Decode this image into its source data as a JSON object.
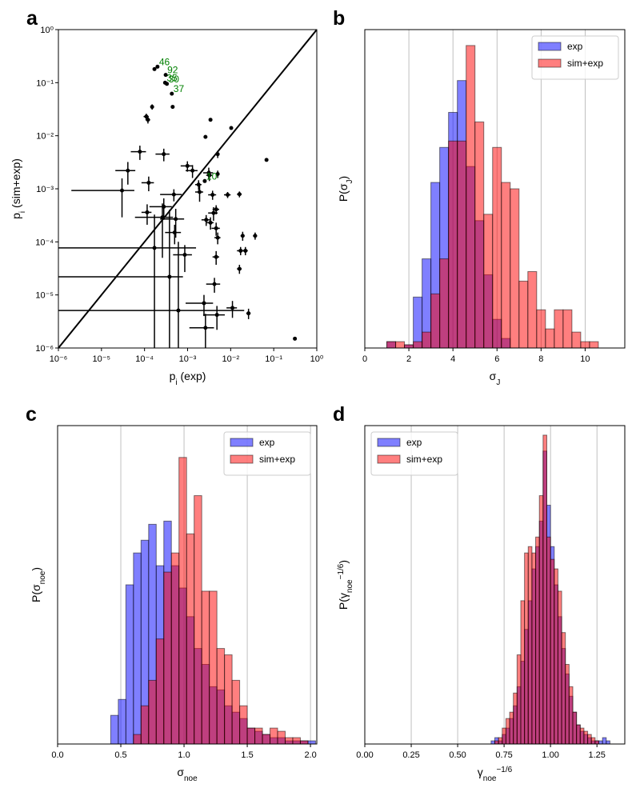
{
  "chart_data": [
    {
      "type": "scatter",
      "panel_label": "a",
      "log_x": true,
      "log_y": true,
      "diagonal": true,
      "xlabel": [
        {
          "text": "p"
        },
        {
          "text": "i",
          "shift": "sub"
        },
        {
          "text": " (exp)"
        }
      ],
      "ylabel": [
        {
          "text": "p"
        },
        {
          "text": "i",
          "shift": "sub"
        },
        {
          "text": " (sim+exp)"
        }
      ],
      "xlim": [
        1e-06,
        1
      ],
      "ylim": [
        1e-06,
        1
      ],
      "xticks": [
        {
          "value": 1e-06,
          "label": "10⁻⁶"
        },
        {
          "value": 1e-05,
          "label": "10⁻⁵"
        },
        {
          "value": 0.0001,
          "label": "10⁻⁴"
        },
        {
          "value": 0.001,
          "label": "10⁻³"
        },
        {
          "value": 0.01,
          "label": "10⁻²"
        },
        {
          "value": 0.1,
          "label": "10⁻¹"
        },
        {
          "value": 1,
          "label": "10⁰"
        }
      ],
      "yticks": [
        {
          "value": 1e-06,
          "label": "10⁻⁶"
        },
        {
          "value": 1e-05,
          "label": "10⁻⁵"
        },
        {
          "value": 0.0001,
          "label": "10⁻⁴"
        },
        {
          "value": 0.001,
          "label": "10⁻³"
        },
        {
          "value": 0.01,
          "label": "10⁻²"
        },
        {
          "value": 0.1,
          "label": "10⁻¹"
        },
        {
          "value": 1,
          "label": "10⁰"
        }
      ],
      "color": "black",
      "label_color": "green",
      "x": [
        0.0002,
        0.00031,
        0.0003,
        0.00033,
        0.00043,
        0.0025,
        0.00017,
        0.00015,
        0.00011,
        0.00012,
        0.00045,
        0.0034,
        0.0103,
        0.0026,
        0.068,
        0.31,
        7.8e-05,
        0.00028,
        0.005,
        4.1e-05,
        0.00099,
        0.0013,
        0.0031,
        0.005,
        0.0032,
        3e-05,
        0.000125,
        0.00048,
        0.0018,
        0.0019,
        0.0038,
        0.0085,
        0.016,
        0.0046,
        0.004,
        0.00028,
        0.000115,
        0.00026,
        0.00053,
        0.0027,
        0.0034,
        0.0005,
        0.0046,
        0.005,
        0.019,
        0.037,
        0.00017,
        0.00086,
        0.0046,
        0.017,
        0.022,
        0.00038,
        0.016,
        0.0042,
        0.0024,
        0.00061,
        0.011,
        0.0048,
        0.026,
        0.0026
      ],
      "y": [
        0.2,
        0.14,
        0.1,
        0.095,
        0.062,
        0.0014,
        0.18,
        0.035,
        0.023,
        0.02,
        0.035,
        0.02,
        0.014,
        0.0095,
        0.0035,
        1.5e-06,
        0.005,
        0.0045,
        0.0045,
        0.0022,
        0.0027,
        0.0022,
        0.002,
        0.0019,
        0.0018,
        0.00093,
        0.0013,
        0.00078,
        0.0012,
        0.00087,
        0.00077,
        0.00077,
        0.00079,
        0.00041,
        0.00035,
        0.00046,
        0.00036,
        0.00029,
        0.00027,
        0.00026,
        0.00023,
        0.00015,
        0.00018,
        0.00012,
        0.00013,
        0.00013,
        7.7e-05,
        5.7e-05,
        5.2e-05,
        6.8e-05,
        6.8e-05,
        2.2e-05,
        3.1e-05,
        1.6e-05,
        7e-06,
        5.1e-06,
        5.7e-06,
        4.2e-06,
        4.5e-06,
        2.4e-06
      ],
      "xerr": [
        0,
        0,
        0,
        0,
        0,
        0,
        0,
        0,
        1.5e-05,
        1.5e-05,
        0,
        0,
        0,
        0,
        0,
        0,
        3e-05,
        0.0001,
        0,
        2e-05,
        0.0003,
        0.0004,
        0.0008,
        0,
        0.0005,
        2.8e-05,
        4e-05,
        0.00025,
        0.0003,
        0.0004,
        0.0008,
        0.0015,
        0.002,
        0.0008,
        0.001,
        0.00015,
        3e-05,
        0.0002,
        0.0003,
        0.0006,
        0.0006,
        0.0002,
        0.001,
        0.0008,
        0.002,
        0.004,
        0.0014,
        0.0004,
        0.0008,
        0.003,
        0.003,
        0.0004,
        0.002,
        0.0015,
        0.0015,
        0.02,
        0.003,
        0.0025,
        0.003,
        0.0015
      ],
      "yerr": [
        0,
        0,
        0,
        0,
        0,
        0,
        0,
        0.004,
        0.003,
        0.003,
        0,
        0,
        0,
        0,
        0,
        0,
        0.0015,
        0.0012,
        0.0007,
        0.001,
        0.0006,
        0.0006,
        0.0005,
        0.0003,
        0.0004,
        0.00064,
        0.0004,
        0.0002,
        0.00025,
        0.0003,
        0.00015,
        0.0001,
        0.0001,
        8e-05,
        0.0001,
        0.0002,
        0.00015,
        0.00024,
        0.00015,
        6e-05,
        6e-05,
        6e-05,
        5e-05,
        3e-05,
        2.5e-05,
        2e-05,
        0.00025,
        3e-05,
        1.5e-05,
        1.2e-05,
        1.2e-05,
        0.00038,
        6e-06,
        5e-06,
        3e-06,
        9.5e-05,
        2e-06,
        2e-06,
        1e-06,
        2e-06
      ],
      "point_labels": [
        "46",
        "92",
        "35",
        "30",
        "37",
        "10",
        null,
        null,
        null,
        null,
        null,
        null,
        null,
        null,
        null,
        null,
        null,
        null,
        null,
        null,
        null,
        null,
        null,
        null,
        null,
        null,
        null,
        null,
        null,
        null,
        null,
        null,
        null,
        null,
        null,
        null,
        null,
        null,
        null,
        null,
        null,
        null,
        null,
        null,
        null,
        null,
        null,
        null,
        null,
        null,
        null,
        null,
        null,
        null,
        null,
        null,
        null,
        null,
        null,
        null
      ]
    },
    {
      "type": "histogram",
      "panel_label": "b",
      "grid": true,
      "legend": "upper right",
      "alpha": 0.5,
      "edgecolor": "black",
      "xlabel": [
        {
          "text": "σ"
        },
        {
          "text": "J",
          "shift": "sub"
        }
      ],
      "ylabel": [
        {
          "text": "P(σ"
        },
        {
          "text": "J",
          "shift": "sub"
        },
        {
          "text": ")"
        }
      ],
      "xlim": [
        0,
        11.8
      ],
      "ylim": [
        0,
        1
      ],
      "xticks": [
        0,
        2,
        4,
        6,
        8,
        10
      ],
      "series": [
        {
          "name": "exp",
          "color": "blue",
          "bins": [
            1.0,
            1.4,
            1.8,
            2.2,
            2.6,
            3.0,
            3.4,
            3.8,
            4.2,
            4.6,
            5.0,
            5.4,
            5.8,
            6.2,
            6.6
          ],
          "values": [
            0.02,
            0,
            0.01,
            0.16,
            0.28,
            0.52,
            0.63,
            0.74,
            0.84,
            0.57,
            0.4,
            0.23,
            0.09,
            0.03
          ]
        },
        {
          "name": "sim+exp",
          "color": "red",
          "bins": [
            1.0,
            1.4,
            1.8,
            2.2,
            2.6,
            3.0,
            3.4,
            3.8,
            4.2,
            4.6,
            5.0,
            5.4,
            5.8,
            6.2,
            6.6,
            7.0,
            7.4,
            7.8,
            8.2,
            8.6,
            9.0,
            9.4,
            9.8,
            10.2,
            10.6
          ],
          "values": [
            0.02,
            0.02,
            0.01,
            0.02,
            0.05,
            0.17,
            0.28,
            0.65,
            0.65,
            0.95,
            0.71,
            0.42,
            0.63,
            0.52,
            0.5,
            0.21,
            0.24,
            0.12,
            0.06,
            0.12,
            0.12,
            0.05,
            0.02,
            0.02
          ]
        }
      ]
    },
    {
      "type": "histogram",
      "panel_label": "c",
      "grid": true,
      "legend": "upper right",
      "alpha": 0.5,
      "edgecolor": "black",
      "xlabel": [
        {
          "text": "σ"
        },
        {
          "text": "noe",
          "shift": "sub"
        }
      ],
      "ylabel": [
        {
          "text": "P(σ"
        },
        {
          "text": "noe",
          "shift": "sub"
        },
        {
          "text": ")"
        }
      ],
      "xlim": [
        0,
        2.05
      ],
      "ylim": [
        0,
        1
      ],
      "xticks": [
        {
          "value": 0,
          "label": "0.0"
        },
        {
          "value": 0.5,
          "label": "0.5"
        },
        {
          "value": 1,
          "label": "1.0"
        },
        {
          "value": 1.5,
          "label": "1.5"
        },
        {
          "value": 2,
          "label": "2.0"
        }
      ],
      "series": [
        {
          "name": "exp",
          "color": "blue",
          "bins": [
            0.42,
            0.48,
            0.54,
            0.6,
            0.66,
            0.72,
            0.78,
            0.84,
            0.9,
            0.96,
            1.02,
            1.08,
            1.14,
            1.2,
            1.26,
            1.32,
            1.38,
            1.44,
            1.5,
            1.56,
            1.62,
            1.68,
            1.74,
            1.8,
            1.86,
            1.92,
            1.98,
            2.04
          ],
          "values": [
            0.09,
            0.14,
            0.5,
            0.6,
            0.64,
            0.69,
            0.56,
            0.7,
            0.56,
            0.49,
            0.4,
            0.3,
            0.25,
            0.18,
            0.17,
            0.12,
            0.1,
            0.08,
            0.05,
            0.04,
            0.03,
            0.02,
            0.02,
            0.01,
            0.01,
            0.01,
            0.01
          ]
        },
        {
          "name": "sim+exp",
          "color": "red",
          "bins": [
            0.6,
            0.66,
            0.72,
            0.78,
            0.84,
            0.9,
            0.96,
            1.02,
            1.08,
            1.14,
            1.2,
            1.26,
            1.32,
            1.38,
            1.44,
            1.5,
            1.56,
            1.62,
            1.68,
            1.74,
            1.8,
            1.86,
            1.92,
            1.98
          ],
          "values": [
            0.03,
            0.12,
            0.2,
            0.33,
            0.54,
            0.6,
            0.9,
            0.66,
            0.78,
            0.48,
            0.48,
            0.3,
            0.28,
            0.2,
            0.12,
            0.05,
            0.05,
            0.03,
            0.05,
            0.04,
            0.02,
            0.02,
            0.01
          ]
        }
      ]
    },
    {
      "type": "histogram",
      "panel_label": "d",
      "grid": true,
      "legend": "upper left",
      "alpha": 0.5,
      "edgecolor": "black",
      "xlabel": [
        {
          "text": "γ"
        },
        {
          "text": "noe",
          "shift": "sub"
        },
        {
          "text": "−1/6",
          "shift": "sup"
        }
      ],
      "ylabel": [
        {
          "text": "P(γ"
        },
        {
          "text": "noe",
          "shift": "sub"
        },
        {
          "text": "−1/6",
          "shift": "sup"
        },
        {
          "text": ")"
        }
      ],
      "xlim": [
        0,
        1.4
      ],
      "ylim": [
        0,
        1
      ],
      "xticks": [
        {
          "value": 0,
          "label": "0.00"
        },
        {
          "value": 0.25,
          "label": "0.25"
        },
        {
          "value": 0.5,
          "label": "0.50"
        },
        {
          "value": 0.75,
          "label": "0.75"
        },
        {
          "value": 1,
          "label": "1.00"
        },
        {
          "value": 1.25,
          "label": "1.25"
        }
      ],
      "series": [
        {
          "name": "exp",
          "color": "blue",
          "bins": [
            0.68,
            0.7,
            0.72,
            0.74,
            0.76,
            0.78,
            0.8,
            0.82,
            0.84,
            0.86,
            0.88,
            0.9,
            0.92,
            0.94,
            0.96,
            0.98,
            1.0,
            1.02,
            1.04,
            1.06,
            1.08,
            1.1,
            1.12,
            1.14,
            1.16,
            1.18,
            1.2,
            1.22,
            1.24,
            1.26,
            1.28,
            1.3,
            1.32
          ],
          "values": [
            0.01,
            0.02,
            0.01,
            0.03,
            0.05,
            0.08,
            0.12,
            0.18,
            0.26,
            0.36,
            0.45,
            0.55,
            0.62,
            0.7,
            0.92,
            0.75,
            0.62,
            0.5,
            0.4,
            0.3,
            0.22,
            0.15,
            0.1,
            0.06,
            0.04,
            0.03,
            0.02,
            0.01,
            0.01,
            0.01,
            0.02,
            0.01
          ]
        },
        {
          "name": "sim+exp",
          "color": "red",
          "bins": [
            0.68,
            0.7,
            0.72,
            0.74,
            0.76,
            0.78,
            0.8,
            0.82,
            0.84,
            0.86,
            0.88,
            0.9,
            0.92,
            0.94,
            0.96,
            0.98,
            1.0,
            1.02,
            1.04,
            1.06,
            1.08,
            1.1,
            1.12,
            1.14,
            1.16,
            1.18,
            1.2,
            1.22,
            1.24,
            1.26,
            1.28,
            1.3,
            1.32
          ],
          "values": [
            0,
            0.01,
            0.02,
            0.05,
            0.08,
            0.1,
            0.16,
            0.28,
            0.45,
            0.6,
            0.62,
            0.6,
            0.65,
            0.78,
            0.97,
            0.65,
            0.58,
            0.55,
            0.48,
            0.35,
            0.25,
            0.18,
            0.1,
            0.06,
            0.05,
            0.04,
            0.03,
            0.02,
            0.01,
            0,
            0,
            0
          ]
        }
      ]
    }
  ]
}
